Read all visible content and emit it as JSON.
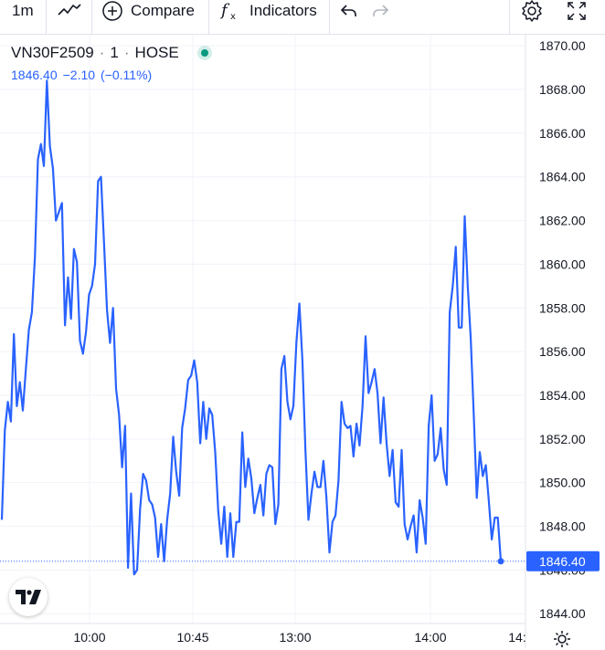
{
  "toolbar": {
    "interval": "1m",
    "compare_label": "Compare",
    "indicators_label": "Indicators"
  },
  "legend": {
    "symbol": "VN30F2509",
    "dot1": "·",
    "interval": "1",
    "dot2": "·",
    "exchange": "HOSE",
    "last": "1846.40",
    "change": "−2.10",
    "change_pct": "(−0.11%)"
  },
  "colors": {
    "line": "#2962ff",
    "price_label_bg": "#2962ff",
    "status_dot": "#089981",
    "grid": "#f0f3fa"
  },
  "chart_data": {
    "type": "line",
    "title": "VN30F2509 · 1 · HOSE",
    "xlabel": "",
    "ylabel": "",
    "ylim": [
      1843.55,
      1870.55
    ],
    "x_ticks": [
      "10:00",
      "10:45",
      "13:00",
      "14:00",
      "14:"
    ],
    "y_ticks": [
      "1870.00",
      "1868.00",
      "1866.00",
      "1864.00",
      "1862.00",
      "1860.00",
      "1858.00",
      "1856.00",
      "1854.00",
      "1852.00",
      "1850.00",
      "1848.00",
      "1846.00",
      "1844.00"
    ],
    "last_price_label": "1846.40",
    "series": [
      {
        "values": [
          1848.3,
          1852.4,
          1853.7,
          1852.8,
          1856.8,
          1853.5,
          1854.6,
          1853.3,
          1855.2,
          1857.0,
          1857.8,
          1860.3,
          1864.8,
          1865.5,
          1864.5,
          1868.4,
          1865.4,
          1864.4,
          1862.0,
          1862.4,
          1862.8,
          1857.2,
          1859.4,
          1857.5,
          1860.7,
          1860.1,
          1856.5,
          1855.9,
          1856.9,
          1858.6,
          1859.0,
          1860.0,
          1863.8,
          1864.0,
          1861.0,
          1857.9,
          1856.4,
          1858.0,
          1854.3,
          1853.1,
          1850.7,
          1852.6,
          1846.1,
          1849.5,
          1845.8,
          1846.0,
          1848.8,
          1850.4,
          1850.1,
          1849.2,
          1849.0,
          1848.4,
          1846.6,
          1848.1,
          1846.4,
          1848.3,
          1849.5,
          1852.1,
          1850.5,
          1849.4,
          1852.5,
          1853.4,
          1854.7,
          1854.9,
          1855.6,
          1854.6,
          1851.8,
          1853.7,
          1852.0,
          1853.4,
          1853.1,
          1851.4,
          1848.7,
          1847.2,
          1848.9,
          1846.6,
          1848.6,
          1846.6,
          1848.2,
          1848.2,
          1852.3,
          1849.8,
          1851.1,
          1850.2,
          1848.6,
          1849.3,
          1849.9,
          1848.5,
          1850.4,
          1850.8,
          1850.7,
          1848.1,
          1849.0,
          1855.2,
          1855.8,
          1853.7,
          1852.9,
          1853.5,
          1856.4,
          1858.2,
          1855.6,
          1851.5,
          1848.3,
          1849.5,
          1850.5,
          1849.8,
          1849.8,
          1851.0,
          1849.3,
          1846.8,
          1848.2,
          1848.5,
          1850.1,
          1853.7,
          1852.7,
          1852.5,
          1852.6,
          1851.2,
          1852.7,
          1851.7,
          1853.5,
          1856.7,
          1854.1,
          1854.6,
          1855.2,
          1854.1,
          1851.8,
          1853.9,
          1851.8,
          1850.3,
          1851.5,
          1849.1,
          1848.9,
          1851.5,
          1848.1,
          1847.4,
          1848.0,
          1848.5,
          1846.8,
          1849.2,
          1848.4,
          1847.2,
          1852.6,
          1854.0,
          1851.0,
          1851.3,
          1852.5,
          1850.6,
          1849.9,
          1857.8,
          1859.0,
          1860.8,
          1857.1,
          1857.1,
          1862.2,
          1859.0,
          1856.6,
          1853.1,
          1849.3,
          1851.4,
          1850.3,
          1850.8,
          1849.2,
          1847.4,
          1848.4,
          1848.4,
          1846.4
        ]
      }
    ]
  }
}
